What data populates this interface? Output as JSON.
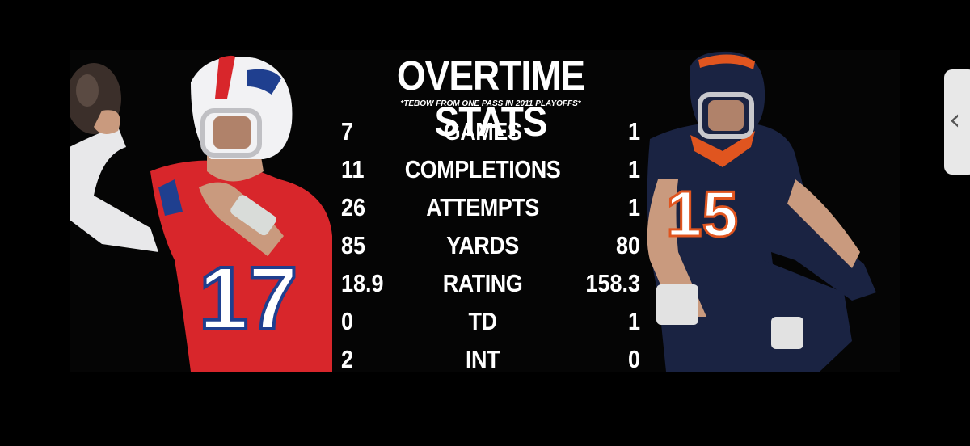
{
  "graphic": {
    "title": "OVERTIME STATS",
    "subtitle": "*TEBOW FROM ONE PASS IN 2011 PLAYOFFS*",
    "left_player_number": "17",
    "right_player_number": "15",
    "stats": [
      {
        "left": "7",
        "label": "GAMES",
        "right": "1"
      },
      {
        "left": "11",
        "label": "COMPLETIONS",
        "right": "1"
      },
      {
        "left": "26",
        "label": "ATTEMPTS",
        "right": "1"
      },
      {
        "left": "85",
        "label": "YARDS",
        "right": "80"
      },
      {
        "left": "18.9",
        "label": "RATING",
        "right": "158.3"
      },
      {
        "left": "0",
        "label": "TD",
        "right": "1"
      },
      {
        "left": "2",
        "label": "INT",
        "right": "0"
      }
    ]
  },
  "colors": {
    "bills_red": "#d8262b",
    "bills_blue": "#1f3f8f",
    "broncos_navy": "#1a2342",
    "broncos_orange": "#e0551f"
  },
  "side_handle": {
    "icon": "chevron-left-icon",
    "glyph": "‹"
  }
}
